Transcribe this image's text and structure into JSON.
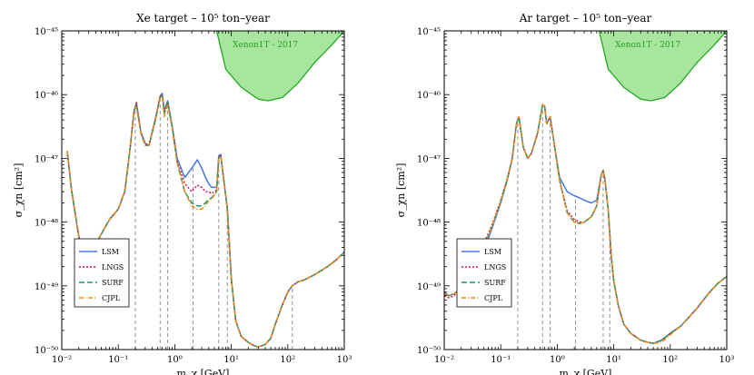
{
  "chart_data": [
    {
      "type": "line",
      "title": "Xe target – 10⁵ ton–year",
      "xlabel": "m_χ [GeV]",
      "ylabel": "σ_χn [cm²]",
      "xscale": "log",
      "yscale": "log",
      "xlim": [
        0.01,
        1000
      ],
      "ylim": [
        1e-50,
        1e-45
      ],
      "x_ticks": [
        "10⁻²",
        "10⁻¹",
        "10⁰",
        "10¹",
        "10²",
        "10³"
      ],
      "y_ticks": [
        "10⁻⁵⁰",
        "10⁻⁴⁹",
        "10⁻⁴⁸",
        "10⁻⁴⁷",
        "10⁻⁴⁶",
        "10⁻⁴⁵"
      ],
      "legend_position": "bottom-left",
      "annotation": "Xenon1T - 2017",
      "exclusion": {
        "label": "Xenon1T - 2017",
        "x": [
          5.5,
          8,
          15,
          30,
          45,
          80,
          150,
          300,
          600,
          1000
        ],
        "y": [
          1e-45,
          2.5e-46,
          1.3e-46,
          8.5e-47,
          8e-47,
          9e-47,
          1.5e-46,
          3.2e-46,
          6e-46,
          1e-45
        ]
      },
      "vlines": [
        0.2,
        0.55,
        0.75,
        2.1,
        6.0,
        8.5,
        120
      ],
      "x": [
        0.0125,
        0.015,
        0.02,
        0.025,
        0.03,
        0.04,
        0.05,
        0.07,
        0.1,
        0.13,
        0.16,
        0.19,
        0.21,
        0.25,
        0.3,
        0.35,
        0.45,
        0.55,
        0.6,
        0.65,
        0.75,
        0.9,
        1.1,
        1.5,
        2.0,
        2.5,
        3.0,
        3.5,
        4.0,
        4.5,
        5.5,
        6.0,
        6.5,
        7.5,
        8.5,
        10,
        12,
        15,
        20,
        25,
        30,
        40,
        50,
        60,
        80,
        100,
        120,
        150,
        200,
        300,
        500,
        700,
        1000
      ],
      "series": [
        {
          "name": "LSM",
          "values": [
            1.3e-47,
            3e-48,
            6e-49,
            3.3e-49,
            3.2e-49,
            4.5e-49,
            6.5e-49,
            1.1e-48,
            1.6e-48,
            3e-48,
            1.3e-47,
            5.5e-47,
            7.5e-47,
            2.6e-47,
            1.7e-47,
            1.6e-47,
            4e-47,
            9.5e-47,
            1.05e-46,
            5.5e-47,
            8e-47,
            3.2e-47,
            1e-47,
            5e-48,
            7e-48,
            9.5e-48,
            7e-48,
            5e-48,
            4e-48,
            3.5e-48,
            3.5e-48,
            1.1e-47,
            1.15e-47,
            4e-48,
            1.7e-48,
            1.3e-49,
            2.8e-50,
            1.6e-50,
            1.3e-50,
            1.15e-50,
            1.1e-50,
            1.2e-50,
            1.5e-50,
            2.5e-50,
            5e-50,
            8e-50,
            1e-49,
            1.15e-49,
            1.25e-49,
            1.5e-49,
            2e-49,
            2.5e-49,
            3.4e-49
          ]
        },
        {
          "name": "LNGS",
          "values": [
            1.3e-47,
            3e-48,
            6e-49,
            3.3e-49,
            3.2e-49,
            4.5e-49,
            6.5e-49,
            1.1e-48,
            1.6e-48,
            3e-48,
            1.3e-47,
            5.5e-47,
            7.5e-47,
            2.6e-47,
            1.7e-47,
            1.6e-47,
            4e-47,
            9.5e-47,
            1e-46,
            5.5e-47,
            7.5e-47,
            3e-47,
            9e-48,
            4e-48,
            3e-48,
            3.8e-48,
            3.5e-48,
            3e-48,
            3e-48,
            2.8e-48,
            3.2e-48,
            1.05e-47,
            1.1e-47,
            4e-48,
            1.7e-48,
            1.3e-49,
            2.8e-50,
            1.6e-50,
            1.3e-50,
            1.15e-50,
            1.1e-50,
            1.2e-50,
            1.5e-50,
            2.5e-50,
            5e-50,
            8e-50,
            1e-49,
            1.15e-49,
            1.25e-49,
            1.5e-49,
            2e-49,
            2.5e-49,
            3.4e-49
          ]
        },
        {
          "name": "SURF",
          "values": [
            1.3e-47,
            3e-48,
            6e-49,
            3.3e-49,
            3.2e-49,
            4.5e-49,
            6.5e-49,
            1.1e-48,
            1.6e-48,
            3e-48,
            1.3e-47,
            5.5e-47,
            7e-47,
            2.5e-47,
            1.6e-47,
            1.6e-47,
            3.8e-47,
            9e-47,
            1e-46,
            5e-47,
            7.5e-47,
            3e-47,
            8.5e-48,
            3e-48,
            2e-48,
            1.8e-48,
            1.8e-48,
            2e-48,
            2.3e-48,
            2.4e-48,
            3e-48,
            1e-47,
            1.1e-47,
            4e-48,
            1.6e-48,
            1.3e-49,
            2.8e-50,
            1.6e-50,
            1.3e-50,
            1.15e-50,
            1.1e-50,
            1.2e-50,
            1.5e-50,
            2.5e-50,
            5e-50,
            8e-50,
            1e-49,
            1.15e-49,
            1.25e-49,
            1.5e-49,
            2e-49,
            2.5e-49,
            3.4e-49
          ]
        },
        {
          "name": "CJPL",
          "values": [
            1.3e-47,
            3e-48,
            6e-49,
            3.3e-49,
            3.2e-49,
            4.5e-49,
            6.5e-49,
            1.1e-48,
            1.6e-48,
            3e-48,
            1.3e-47,
            5.5e-47,
            6.5e-47,
            2.5e-47,
            1.6e-47,
            1.6e-47,
            3.8e-47,
            9e-47,
            9.5e-47,
            4.5e-47,
            7e-47,
            3e-47,
            8.5e-48,
            3e-48,
            1.8e-48,
            1.6e-48,
            1.6e-48,
            1.8e-48,
            2.2e-48,
            2.3e-48,
            3e-48,
            1e-47,
            1.1e-47,
            4e-48,
            1.6e-48,
            1.3e-49,
            2.8e-50,
            1.6e-50,
            1.3e-50,
            1.15e-50,
            1.1e-50,
            1.2e-50,
            1.5e-50,
            2.5e-50,
            5e-50,
            8e-50,
            1e-49,
            1.15e-49,
            1.25e-49,
            1.5e-49,
            2e-49,
            2.5e-49,
            3.4e-49
          ]
        }
      ]
    },
    {
      "type": "line",
      "title": "Ar target – 10⁵ ton–year",
      "xlabel": "m_χ [GeV]",
      "ylabel": "σ_χn [cm²]",
      "xscale": "log",
      "yscale": "log",
      "xlim": [
        0.01,
        1000
      ],
      "ylim": [
        1e-50,
        1e-45
      ],
      "x_ticks": [
        "10⁻²",
        "10⁻¹",
        "10⁰",
        "10¹",
        "10²",
        "10³"
      ],
      "y_ticks": [
        "10⁻⁵⁰",
        "10⁻⁴⁹",
        "10⁻⁴⁸",
        "10⁻⁴⁷",
        "10⁻⁴⁶",
        "10⁻⁴⁵"
      ],
      "legend_position": "bottom-left",
      "annotation": "Xenon1T - 2017",
      "exclusion": {
        "label": "Xenon1T - 2017",
        "x": [
          5.5,
          8,
          15,
          30,
          45,
          80,
          150,
          300,
          600,
          1000
        ],
        "y": [
          1e-45,
          2.5e-46,
          1.3e-46,
          8.5e-47,
          8e-47,
          9e-47,
          1.5e-46,
          3.2e-46,
          6e-46,
          1e-45
        ]
      },
      "vlines": [
        0.2,
        0.55,
        0.75,
        2.1,
        6.5,
        8.5
      ],
      "x": [
        0.01,
        0.012,
        0.015,
        0.02,
        0.03,
        0.05,
        0.07,
        0.1,
        0.13,
        0.16,
        0.19,
        0.21,
        0.25,
        0.3,
        0.35,
        0.45,
        0.55,
        0.6,
        0.65,
        0.75,
        0.9,
        1.1,
        1.5,
        2.0,
        2.5,
        3.0,
        4.0,
        5.0,
        6.0,
        6.5,
        7.0,
        8.0,
        9.0,
        10,
        12,
        15,
        20,
        30,
        40,
        50,
        70,
        100,
        150,
        200,
        300,
        500,
        700,
        1000
      ],
      "series": [
        {
          "name": "LSM",
          "values": [
            8e-50,
            7e-50,
            7.5e-50,
            9e-50,
            1.6e-49,
            3.5e-49,
            8e-49,
            2e-48,
            4.5e-48,
            1e-47,
            3.5e-47,
            4.5e-47,
            1.5e-47,
            1e-47,
            1.2e-47,
            2.5e-47,
            7e-47,
            6.5e-47,
            3.5e-47,
            4.5e-47,
            1.5e-47,
            5e-48,
            3e-48,
            2.6e-48,
            2.4e-48,
            2.2e-48,
            2e-48,
            2.2e-48,
            5.5e-48,
            6.5e-48,
            4.5e-48,
            1.5e-48,
            3e-49,
            1.2e-49,
            5e-50,
            2.5e-50,
            1.8e-50,
            1.4e-50,
            1.3e-50,
            1.25e-50,
            1.4e-50,
            1.8e-50,
            2.3e-50,
            3e-50,
            4.5e-50,
            8e-50,
            1.1e-49,
            1.4e-49
          ]
        },
        {
          "name": "LNGS",
          "values": [
            7e-50,
            6.5e-50,
            7e-50,
            1e-49,
            2e-49,
            4.5e-49,
            9e-49,
            2.2e-48,
            4.8e-48,
            1e-47,
            3.5e-47,
            4.5e-47,
            1.5e-47,
            1e-47,
            1.2e-47,
            2.5e-47,
            7e-47,
            6.5e-47,
            3.5e-47,
            4.5e-47,
            1.5e-47,
            4.5e-48,
            1.5e-48,
            1.1e-48,
            1e-48,
            1e-48,
            1.2e-48,
            1.8e-48,
            5.5e-48,
            6.5e-48,
            4.5e-48,
            1.5e-48,
            3e-49,
            1.2e-49,
            5e-50,
            2.5e-50,
            1.8e-50,
            1.4e-50,
            1.3e-50,
            1.25e-50,
            1.4e-50,
            1.8e-50,
            2.3e-50,
            3e-50,
            4.5e-50,
            8e-50,
            1.1e-49,
            1.4e-49
          ]
        },
        {
          "name": "SURF",
          "values": [
            7.5e-50,
            7e-50,
            7.5e-50,
            9.5e-50,
            1.8e-49,
            4e-49,
            8.5e-49,
            2.1e-48,
            4.6e-48,
            1e-47,
            3.5e-47,
            4.5e-47,
            1.5e-47,
            1e-47,
            1.2e-47,
            2.5e-47,
            7e-47,
            6.5e-47,
            3.5e-47,
            4.5e-47,
            1.5e-47,
            4.5e-48,
            1.4e-48,
            1e-48,
            9.5e-49,
            1e-48,
            1.2e-48,
            1.8e-48,
            5.5e-48,
            6.5e-48,
            4.5e-48,
            1.5e-48,
            3e-49,
            1.2e-49,
            5e-50,
            2.5e-50,
            1.8e-50,
            1.4e-50,
            1.3e-50,
            1.25e-50,
            1.4e-50,
            1.8e-50,
            2.3e-50,
            3e-50,
            4.5e-50,
            8e-50,
            1.1e-49,
            1.4e-49
          ]
        },
        {
          "name": "CJPL",
          "values": [
            7.5e-50,
            7e-50,
            7.5e-50,
            9.5e-50,
            1.8e-49,
            4e-49,
            8.5e-49,
            2.1e-48,
            4.6e-48,
            1e-47,
            3.5e-47,
            4.5e-47,
            1.5e-47,
            1e-47,
            1.2e-47,
            2.5e-47,
            7e-47,
            6.5e-47,
            3.5e-47,
            4.5e-47,
            1.5e-47,
            4.5e-48,
            1.4e-48,
            1e-48,
            9.5e-49,
            1e-48,
            1.2e-48,
            1.8e-48,
            5.5e-48,
            6.5e-48,
            4.5e-48,
            1.5e-48,
            3e-49,
            1.2e-49,
            5e-50,
            2.5e-50,
            1.8e-50,
            1.4e-50,
            1.3e-50,
            1.25e-50,
            1.3e-50,
            1.7e-50,
            2.3e-50,
            3e-50,
            4.5e-50,
            8e-50,
            1.1e-49,
            1.4e-49
          ]
        }
      ]
    }
  ],
  "styles": {
    "series_colors": {
      "LSM": "#4477dd",
      "LNGS": "#dd1144",
      "SURF": "#119966",
      "CJPL": "#ee8811"
    },
    "series_dash": {
      "LSM": "",
      "LNGS": "2 2",
      "SURF": "6 3",
      "CJPL": "5 2 1 2"
    },
    "exclusion_fill": "#a8e6a0",
    "exclusion_stroke": "#22aa22"
  }
}
